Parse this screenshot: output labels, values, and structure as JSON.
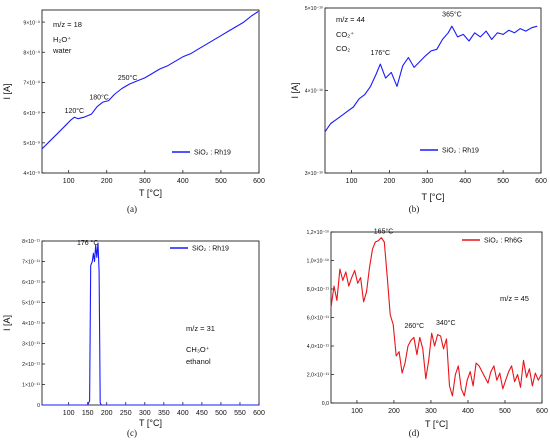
{
  "chart_data": [
    {
      "id": "a",
      "type": "line",
      "panel_label": "(a)",
      "xlabel": "T [°C]",
      "ylabel": "I [A]",
      "xlim": [
        30,
        600
      ],
      "ylim": [
        4e-09,
        9.4e-09
      ],
      "xticks": [
        "100",
        "200",
        "300",
        "400",
        "500",
        "600"
      ],
      "yticks": [
        "4×10⁻⁹",
        "5×10⁻⁹",
        "6×10⁻⁹",
        "7×10⁻⁹",
        "8×10⁻⁹",
        "9×10⁻⁹"
      ],
      "ytick_values": [
        4e-09,
        5e-09,
        6e-09,
        7e-09,
        8e-09,
        9e-09
      ],
      "xtick_values": [
        100,
        200,
        300,
        400,
        500,
        600
      ],
      "info_lines": [
        "m/z = 18",
        "H₂O⁺",
        "water"
      ],
      "legend": "SiO₂ : Rh19",
      "legend_position": "bottom-right",
      "annotations": [
        {
          "text": "120°C",
          "x": 115,
          "y": 5.85e-09
        },
        {
          "text": "180°C",
          "x": 180,
          "y": 6.3e-09
        },
        {
          "text": "250°C",
          "x": 255,
          "y": 6.95e-09
        }
      ],
      "series": [
        {
          "color": "#1a1aff",
          "x": [
            30,
            50,
            70,
            90,
            105,
            115,
            125,
            140,
            160,
            175,
            190,
            205,
            220,
            240,
            260,
            280,
            300,
            320,
            340,
            360,
            380,
            400,
            420,
            440,
            460,
            480,
            500,
            520,
            540,
            560,
            580,
            598
          ],
          "y": [
            4.8e-09,
            5.05e-09,
            5.3e-09,
            5.55e-09,
            5.75e-09,
            5.85e-09,
            5.8e-09,
            5.85e-09,
            5.95e-09,
            6.2e-09,
            6.35e-09,
            6.4e-09,
            6.6e-09,
            6.8e-09,
            6.95e-09,
            7.05e-09,
            7.15e-09,
            7.3e-09,
            7.45e-09,
            7.55e-09,
            7.7e-09,
            7.85e-09,
            7.95e-09,
            8.1e-09,
            8.25e-09,
            8.4e-09,
            8.55e-09,
            8.7e-09,
            8.85e-09,
            9e-09,
            9.2e-09,
            9.35e-09
          ]
        }
      ]
    },
    {
      "id": "b",
      "type": "line",
      "panel_label": "(b)",
      "xlabel": "T [°C]",
      "ylabel": "I [A]",
      "xlim": [
        30,
        600
      ],
      "ylim": [
        3e-10,
        5e-10
      ],
      "xticks": [
        "100",
        "200",
        "300",
        "400",
        "500",
        "600"
      ],
      "yticks": [
        "3×10⁻¹⁰",
        "4×10⁻¹⁰",
        "5×10⁻¹⁰"
      ],
      "ytick_values": [
        3e-10,
        4e-10,
        5e-10
      ],
      "xtick_values": [
        100,
        200,
        300,
        400,
        500,
        600
      ],
      "info_lines": [
        "m/z = 44",
        "CO₂⁺",
        "CO₂"
      ],
      "legend": "SiO₂ : Rh19",
      "legend_position": "bottom-right",
      "annotations": [
        {
          "text": "176°C",
          "x": 176,
          "y": 4.38e-10
        },
        {
          "text": "365°C",
          "x": 365,
          "y": 4.85e-10
        }
      ],
      "series": [
        {
          "color": "#1a1aff",
          "x": [
            30,
            45,
            60,
            75,
            90,
            105,
            120,
            135,
            150,
            165,
            176,
            190,
            205,
            220,
            235,
            250,
            265,
            280,
            295,
            310,
            325,
            340,
            355,
            365,
            380,
            395,
            410,
            425,
            440,
            455,
            470,
            485,
            500,
            515,
            530,
            545,
            560,
            575,
            590
          ],
          "y": [
            3.5e-10,
            3.6e-10,
            3.65e-10,
            3.7e-10,
            3.75e-10,
            3.8e-10,
            3.9e-10,
            3.95e-10,
            4.05e-10,
            4.2e-10,
            4.32e-10,
            4.15e-10,
            4.22e-10,
            4.05e-10,
            4.3e-10,
            4.4e-10,
            4.28e-10,
            4.35e-10,
            4.42e-10,
            4.48e-10,
            4.5e-10,
            4.62e-10,
            4.7e-10,
            4.78e-10,
            4.65e-10,
            4.68e-10,
            4.6e-10,
            4.7e-10,
            4.65e-10,
            4.72e-10,
            4.62e-10,
            4.7e-10,
            4.68e-10,
            4.73e-10,
            4.7e-10,
            4.75e-10,
            4.72e-10,
            4.76e-10,
            4.78e-10
          ]
        }
      ]
    },
    {
      "id": "c",
      "type": "line",
      "panel_label": "(c)",
      "xlabel": "T [°C]",
      "ylabel": "I [A]",
      "xlim": [
        30,
        600
      ],
      "ylim": [
        0,
        8e-11
      ],
      "xticks": [
        "100",
        "150",
        "200",
        "250",
        "300",
        "350",
        "400",
        "450",
        "500",
        "550",
        "600"
      ],
      "xtick_values": [
        100,
        150,
        200,
        250,
        300,
        350,
        400,
        450,
        500,
        550,
        600
      ],
      "yticks": [
        "0",
        "1×10⁻¹¹",
        "2×10⁻¹¹",
        "3×10⁻¹¹",
        "4×10⁻¹¹",
        "5×10⁻¹¹",
        "6×10⁻¹¹",
        "7×10⁻¹¹",
        "8×10⁻¹¹"
      ],
      "ytick_values": [
        0,
        1e-11,
        2e-11,
        3e-11,
        4e-11,
        5e-11,
        6e-11,
        7e-11,
        8e-11
      ],
      "info_lines": [
        "m/z = 31",
        "CH₃O⁺",
        "ethanol"
      ],
      "legend": "SiO₂ : Rh19",
      "legend_position": "top-right",
      "annotations": [
        {
          "text": "176 °C",
          "x": 150,
          "y": 7.6e-11
        }
      ],
      "series": [
        {
          "color": "#1a1aff",
          "x": [
            30,
            150,
            155,
            158,
            162,
            165,
            168,
            171,
            174,
            177,
            180,
            183,
            186,
            600
          ],
          "y": [
            0,
            0,
            2e-12,
            6.8e-11,
            7e-11,
            7.4e-11,
            7e-11,
            7.8e-11,
            7.2e-11,
            7.9e-11,
            6.5e-11,
            1e-12,
            0,
            0
          ]
        }
      ]
    },
    {
      "id": "d",
      "type": "line",
      "panel_label": "(d)",
      "xlabel": "T [°C]",
      "ylabel": "",
      "xlim": [
        30,
        600
      ],
      "ylim": [
        0,
        1.2e-10
      ],
      "xticks": [
        "100",
        "200",
        "300",
        "400",
        "500",
        "600"
      ],
      "xtick_values": [
        100,
        200,
        300,
        400,
        500,
        600
      ],
      "yticks": [
        "0,0",
        "2,0×10⁻¹¹",
        "4,0×10⁻¹¹",
        "6,0×10⁻¹¹",
        "8,0×10⁻¹¹",
        "1,0×10⁻¹⁰",
        "1,2×10⁻¹⁰"
      ],
      "ytick_values": [
        0,
        2e-11,
        4e-11,
        6e-11,
        8e-11,
        1e-10,
        1.2e-10
      ],
      "info_lines": [
        "m/z = 45"
      ],
      "legend": "SiO₂ : Rh6G",
      "legend_position": "top-right",
      "annotations": [
        {
          "text": "165°C",
          "x": 172,
          "y": 1.16e-10
        },
        {
          "text": "260°C",
          "x": 255,
          "y": 5e-11
        },
        {
          "text": "340°C",
          "x": 340,
          "y": 5.2e-11
        }
      ],
      "series": [
        {
          "color": "#e8141a",
          "x": [
            30,
            38,
            46,
            54,
            62,
            70,
            78,
            86,
            94,
            102,
            110,
            118,
            126,
            134,
            142,
            150,
            158,
            166,
            174,
            182,
            190,
            198,
            206,
            214,
            222,
            230,
            238,
            246,
            254,
            262,
            270,
            278,
            286,
            294,
            302,
            310,
            318,
            326,
            334,
            342,
            350,
            358,
            366,
            374,
            382,
            390,
            398,
            406,
            414,
            422,
            430,
            438,
            446,
            454,
            462,
            470,
            478,
            486,
            494,
            502,
            510,
            518,
            526,
            534,
            542,
            550,
            558,
            566,
            574,
            582,
            590,
            598
          ],
          "y": [
            6.7e-11,
            8.2e-11,
            7.2e-11,
            9.4e-11,
            8.6e-11,
            9.2e-11,
            8.2e-11,
            8.8e-11,
            9.3e-11,
            8.4e-11,
            8.8e-11,
            7.1e-11,
            7.8e-11,
            9.5e-11,
            1.08e-10,
            1.13e-10,
            1.14e-10,
            1.16e-10,
            1.13e-10,
            8.8e-11,
            6.2e-11,
            5.5e-11,
            3.3e-11,
            3.6e-11,
            2.1e-11,
            2.8e-11,
            4e-11,
            4.4e-11,
            4.6e-11,
            3.4e-11,
            4.6e-11,
            3.8e-11,
            1.7e-11,
            3e-11,
            4.9e-11,
            4e-11,
            4.8e-11,
            4.7e-11,
            3.8e-11,
            4.5e-11,
            1.2e-11,
            5e-12,
            2e-11,
            2.6e-11,
            1e-11,
            5e-12,
            1.6e-11,
            2.2e-11,
            1.2e-11,
            2.8e-11,
            2.6e-11,
            2.2e-11,
            1.8e-11,
            1.4e-11,
            2.2e-11,
            2.6e-11,
            1.6e-11,
            2.1e-11,
            1e-11,
            1.6e-11,
            2.2e-11,
            2.6e-11,
            1.5e-11,
            2e-11,
            1.1e-11,
            3e-11,
            1.8e-11,
            2.4e-11,
            1.2e-11,
            2.1e-11,
            1.6e-11,
            2e-11
          ]
        }
      ]
    }
  ]
}
